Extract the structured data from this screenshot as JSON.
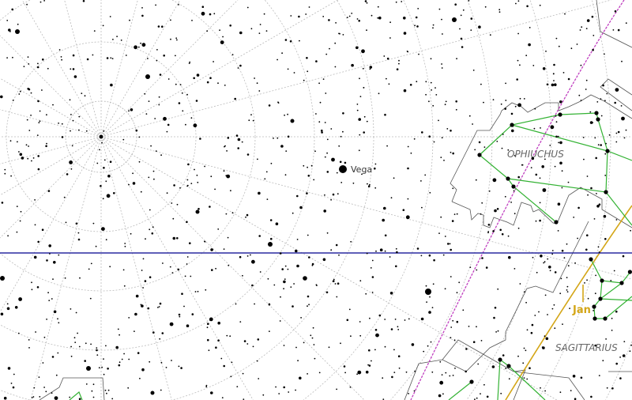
{
  "labels": {
    "star_vega": "Vega",
    "constellation_ophiuchus": "OPHIUCHUS",
    "constellation_sagittarius": "SAGITTARIUS",
    "month_marker": "Jan"
  },
  "colors": {
    "background": "#ffffff",
    "stars": "#000000",
    "grid": "#bbbbbb",
    "horizon": "#2a2aa0",
    "ecliptic": "#c040c0",
    "sun_path": "#d4a617",
    "constellation_lines": "#33b233",
    "boundaries": "#555555",
    "constellation_label": "#666666"
  }
}
